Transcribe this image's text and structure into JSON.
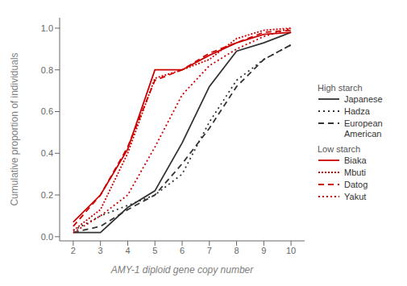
{
  "chart_data": {
    "type": "line",
    "title": "",
    "xlabel": "AMY-1 diploid gene copy number",
    "ylabel": "Cumulative proportion of individuals",
    "x": [
      2,
      3,
      4,
      5,
      6,
      7,
      8,
      9,
      10
    ],
    "xlim": [
      1.5,
      10.5
    ],
    "ylim": [
      -0.02,
      1.05
    ],
    "xticks": [
      2,
      3,
      4,
      5,
      6,
      7,
      8,
      9,
      10
    ],
    "yticks": [
      {
        "value": 0,
        "label": "0.0"
      },
      0.2,
      0.4,
      0.6,
      0.8,
      {
        "value": 1,
        "label": "1.0"
      }
    ],
    "grid": false,
    "legend": "right",
    "series": [
      {
        "name": "Japanese",
        "group": "High starch",
        "color": "#333333",
        "line_style": "solid",
        "values": [
          0.02,
          0.02,
          0.14,
          0.22,
          0.45,
          0.72,
          0.89,
          0.93,
          0.98
        ]
      },
      {
        "name": "Hadza",
        "group": "High starch",
        "color": "#333333",
        "line_style": "loosely_dotted",
        "values": [
          0.03,
          0.1,
          0.15,
          0.2,
          0.3,
          0.55,
          0.75,
          0.85,
          0.92
        ]
      },
      {
        "name": "European\nAmerican",
        "group": "High starch",
        "color": "#333333",
        "line_style": "dashed",
        "values": [
          0.02,
          0.05,
          0.13,
          0.2,
          0.35,
          0.52,
          0.72,
          0.85,
          0.92
        ]
      },
      {
        "name": "Biaka",
        "group": "Low starch",
        "color": "#cc0000",
        "line_style": "solid",
        "values": [
          0.07,
          0.2,
          0.42,
          0.8,
          0.8,
          0.87,
          0.93,
          0.97,
          0.98
        ]
      },
      {
        "name": "Mbuti",
        "group": "Low starch",
        "color": "#cc0000",
        "line_style": "densely_dotted",
        "values": [
          0.03,
          0.13,
          0.4,
          0.76,
          0.8,
          0.85,
          0.95,
          0.99,
          1.0
        ]
      },
      {
        "name": "Datog",
        "group": "Low starch",
        "color": "#cc0000",
        "line_style": "dashed",
        "values": [
          0.05,
          0.2,
          0.43,
          0.75,
          0.8,
          0.88,
          0.93,
          0.98,
          0.99
        ]
      },
      {
        "name": "Yakut",
        "group": "Low starch",
        "color": "#cc0000",
        "line_style": "dotted",
        "values": [
          0.02,
          0.1,
          0.2,
          0.43,
          0.68,
          0.82,
          0.9,
          0.96,
          1.0
        ]
      }
    ]
  }
}
